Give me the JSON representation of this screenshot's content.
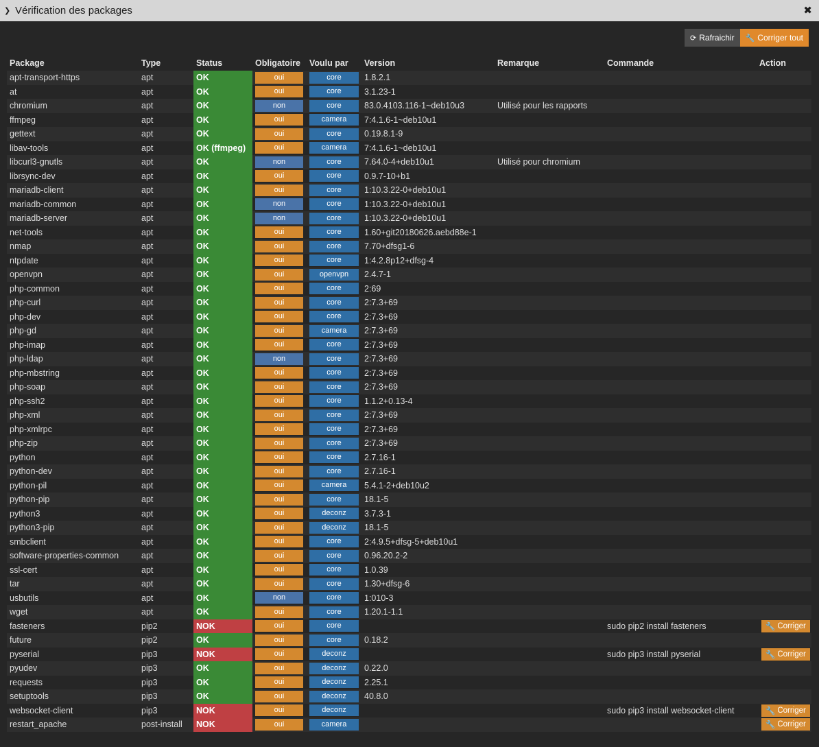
{
  "window": {
    "title": "Vérification des packages"
  },
  "toolbar": {
    "refresh_label": "Rafraichir",
    "fix_all_label": "Corriger tout"
  },
  "colors": {
    "ok": "#3a8a36",
    "nok": "#bf4043",
    "oui": "#d4892f",
    "non": "#4a73a8",
    "wanted": "#2f6ea5"
  },
  "columns": [
    "Package",
    "Type",
    "Status",
    "Obligatoire",
    "Voulu par",
    "Version",
    "Remarque",
    "Commande",
    "Action"
  ],
  "fix_label": "Corriger",
  "rows": [
    {
      "package": "apt-transport-https",
      "type": "apt",
      "status": "OK",
      "ok": true,
      "required": "oui",
      "wanted": "core",
      "version": "1.8.2.1",
      "remark": "",
      "command": ""
    },
    {
      "package": "at",
      "type": "apt",
      "status": "OK",
      "ok": true,
      "required": "oui",
      "wanted": "core",
      "version": "3.1.23-1",
      "remark": "",
      "command": ""
    },
    {
      "package": "chromium",
      "type": "apt",
      "status": "OK",
      "ok": true,
      "required": "non",
      "wanted": "core",
      "version": "83.0.4103.116-1~deb10u3",
      "remark": "Utilisé pour les rapports",
      "command": ""
    },
    {
      "package": "ffmpeg",
      "type": "apt",
      "status": "OK",
      "ok": true,
      "required": "oui",
      "wanted": "camera",
      "version": "7:4.1.6-1~deb10u1",
      "remark": "",
      "command": ""
    },
    {
      "package": "gettext",
      "type": "apt",
      "status": "OK",
      "ok": true,
      "required": "oui",
      "wanted": "core",
      "version": "0.19.8.1-9",
      "remark": "",
      "command": ""
    },
    {
      "package": "libav-tools",
      "type": "apt",
      "status": "OK (ffmpeg)",
      "ok": true,
      "required": "oui",
      "wanted": "camera",
      "version": "7:4.1.6-1~deb10u1",
      "remark": "",
      "command": ""
    },
    {
      "package": "libcurl3-gnutls",
      "type": "apt",
      "status": "OK",
      "ok": true,
      "required": "non",
      "wanted": "core",
      "version": "7.64.0-4+deb10u1",
      "remark": "Utilisé pour chromium",
      "command": ""
    },
    {
      "package": "librsync-dev",
      "type": "apt",
      "status": "OK",
      "ok": true,
      "required": "oui",
      "wanted": "core",
      "version": "0.9.7-10+b1",
      "remark": "",
      "command": ""
    },
    {
      "package": "mariadb-client",
      "type": "apt",
      "status": "OK",
      "ok": true,
      "required": "oui",
      "wanted": "core",
      "version": "1:10.3.22-0+deb10u1",
      "remark": "",
      "command": ""
    },
    {
      "package": "mariadb-common",
      "type": "apt",
      "status": "OK",
      "ok": true,
      "required": "non",
      "wanted": "core",
      "version": "1:10.3.22-0+deb10u1",
      "remark": "",
      "command": ""
    },
    {
      "package": "mariadb-server",
      "type": "apt",
      "status": "OK",
      "ok": true,
      "required": "non",
      "wanted": "core",
      "version": "1:10.3.22-0+deb10u1",
      "remark": "",
      "command": ""
    },
    {
      "package": "net-tools",
      "type": "apt",
      "status": "OK",
      "ok": true,
      "required": "oui",
      "wanted": "core",
      "version": "1.60+git20180626.aebd88e-1",
      "remark": "",
      "command": ""
    },
    {
      "package": "nmap",
      "type": "apt",
      "status": "OK",
      "ok": true,
      "required": "oui",
      "wanted": "core",
      "version": "7.70+dfsg1-6",
      "remark": "",
      "command": ""
    },
    {
      "package": "ntpdate",
      "type": "apt",
      "status": "OK",
      "ok": true,
      "required": "oui",
      "wanted": "core",
      "version": "1:4.2.8p12+dfsg-4",
      "remark": "",
      "command": ""
    },
    {
      "package": "openvpn",
      "type": "apt",
      "status": "OK",
      "ok": true,
      "required": "oui",
      "wanted": "openvpn",
      "version": "2.4.7-1",
      "remark": "",
      "command": ""
    },
    {
      "package": "php-common",
      "type": "apt",
      "status": "OK",
      "ok": true,
      "required": "oui",
      "wanted": "core",
      "version": "2:69",
      "remark": "",
      "command": ""
    },
    {
      "package": "php-curl",
      "type": "apt",
      "status": "OK",
      "ok": true,
      "required": "oui",
      "wanted": "core",
      "version": "2:7.3+69",
      "remark": "",
      "command": ""
    },
    {
      "package": "php-dev",
      "type": "apt",
      "status": "OK",
      "ok": true,
      "required": "oui",
      "wanted": "core",
      "version": "2:7.3+69",
      "remark": "",
      "command": ""
    },
    {
      "package": "php-gd",
      "type": "apt",
      "status": "OK",
      "ok": true,
      "required": "oui",
      "wanted": "camera",
      "version": "2:7.3+69",
      "remark": "",
      "command": ""
    },
    {
      "package": "php-imap",
      "type": "apt",
      "status": "OK",
      "ok": true,
      "required": "oui",
      "wanted": "core",
      "version": "2:7.3+69",
      "remark": "",
      "command": ""
    },
    {
      "package": "php-ldap",
      "type": "apt",
      "status": "OK",
      "ok": true,
      "required": "non",
      "wanted": "core",
      "version": "2:7.3+69",
      "remark": "",
      "command": ""
    },
    {
      "package": "php-mbstring",
      "type": "apt",
      "status": "OK",
      "ok": true,
      "required": "oui",
      "wanted": "core",
      "version": "2:7.3+69",
      "remark": "",
      "command": ""
    },
    {
      "package": "php-soap",
      "type": "apt",
      "status": "OK",
      "ok": true,
      "required": "oui",
      "wanted": "core",
      "version": "2:7.3+69",
      "remark": "",
      "command": ""
    },
    {
      "package": "php-ssh2",
      "type": "apt",
      "status": "OK",
      "ok": true,
      "required": "oui",
      "wanted": "core",
      "version": "1.1.2+0.13-4",
      "remark": "",
      "command": ""
    },
    {
      "package": "php-xml",
      "type": "apt",
      "status": "OK",
      "ok": true,
      "required": "oui",
      "wanted": "core",
      "version": "2:7.3+69",
      "remark": "",
      "command": ""
    },
    {
      "package": "php-xmlrpc",
      "type": "apt",
      "status": "OK",
      "ok": true,
      "required": "oui",
      "wanted": "core",
      "version": "2:7.3+69",
      "remark": "",
      "command": ""
    },
    {
      "package": "php-zip",
      "type": "apt",
      "status": "OK",
      "ok": true,
      "required": "oui",
      "wanted": "core",
      "version": "2:7.3+69",
      "remark": "",
      "command": ""
    },
    {
      "package": "python",
      "type": "apt",
      "status": "OK",
      "ok": true,
      "required": "oui",
      "wanted": "core",
      "version": "2.7.16-1",
      "remark": "",
      "command": ""
    },
    {
      "package": "python-dev",
      "type": "apt",
      "status": "OK",
      "ok": true,
      "required": "oui",
      "wanted": "core",
      "version": "2.7.16-1",
      "remark": "",
      "command": ""
    },
    {
      "package": "python-pil",
      "type": "apt",
      "status": "OK",
      "ok": true,
      "required": "oui",
      "wanted": "camera",
      "version": "5.4.1-2+deb10u2",
      "remark": "",
      "command": ""
    },
    {
      "package": "python-pip",
      "type": "apt",
      "status": "OK",
      "ok": true,
      "required": "oui",
      "wanted": "core",
      "version": "18.1-5",
      "remark": "",
      "command": ""
    },
    {
      "package": "python3",
      "type": "apt",
      "status": "OK",
      "ok": true,
      "required": "oui",
      "wanted": "deconz",
      "version": "3.7.3-1",
      "remark": "",
      "command": ""
    },
    {
      "package": "python3-pip",
      "type": "apt",
      "status": "OK",
      "ok": true,
      "required": "oui",
      "wanted": "deconz",
      "version": "18.1-5",
      "remark": "",
      "command": ""
    },
    {
      "package": "smbclient",
      "type": "apt",
      "status": "OK",
      "ok": true,
      "required": "oui",
      "wanted": "core",
      "version": "2:4.9.5+dfsg-5+deb10u1",
      "remark": "",
      "command": ""
    },
    {
      "package": "software-properties-common",
      "type": "apt",
      "status": "OK",
      "ok": true,
      "required": "oui",
      "wanted": "core",
      "version": "0.96.20.2-2",
      "remark": "",
      "command": ""
    },
    {
      "package": "ssl-cert",
      "type": "apt",
      "status": "OK",
      "ok": true,
      "required": "oui",
      "wanted": "core",
      "version": "1.0.39",
      "remark": "",
      "command": ""
    },
    {
      "package": "tar",
      "type": "apt",
      "status": "OK",
      "ok": true,
      "required": "oui",
      "wanted": "core",
      "version": "1.30+dfsg-6",
      "remark": "",
      "command": ""
    },
    {
      "package": "usbutils",
      "type": "apt",
      "status": "OK",
      "ok": true,
      "required": "non",
      "wanted": "core",
      "version": "1:010-3",
      "remark": "",
      "command": ""
    },
    {
      "package": "wget",
      "type": "apt",
      "status": "OK",
      "ok": true,
      "required": "oui",
      "wanted": "core",
      "version": "1.20.1-1.1",
      "remark": "",
      "command": ""
    },
    {
      "package": "fasteners",
      "type": "pip2",
      "status": "NOK",
      "ok": false,
      "required": "oui",
      "wanted": "core",
      "version": "",
      "remark": "",
      "command": "sudo pip2 install fasteners"
    },
    {
      "package": "future",
      "type": "pip2",
      "status": "OK",
      "ok": true,
      "required": "oui",
      "wanted": "core",
      "version": "0.18.2",
      "remark": "",
      "command": ""
    },
    {
      "package": "pyserial",
      "type": "pip3",
      "status": "NOK",
      "ok": false,
      "required": "oui",
      "wanted": "deconz",
      "version": "",
      "remark": "",
      "command": "sudo pip3 install pyserial"
    },
    {
      "package": "pyudev",
      "type": "pip3",
      "status": "OK",
      "ok": true,
      "required": "oui",
      "wanted": "deconz",
      "version": "0.22.0",
      "remark": "",
      "command": ""
    },
    {
      "package": "requests",
      "type": "pip3",
      "status": "OK",
      "ok": true,
      "required": "oui",
      "wanted": "deconz",
      "version": "2.25.1",
      "remark": "",
      "command": ""
    },
    {
      "package": "setuptools",
      "type": "pip3",
      "status": "OK",
      "ok": true,
      "required": "oui",
      "wanted": "deconz",
      "version": "40.8.0",
      "remark": "",
      "command": ""
    },
    {
      "package": "websocket-client",
      "type": "pip3",
      "status": "NOK",
      "ok": false,
      "required": "oui",
      "wanted": "deconz",
      "version": "",
      "remark": "",
      "command": "sudo pip3 install websocket-client"
    },
    {
      "package": "restart_apache",
      "type": "post-install",
      "status": "NOK",
      "ok": false,
      "required": "oui",
      "wanted": "camera",
      "version": "",
      "remark": "",
      "command": ""
    }
  ]
}
